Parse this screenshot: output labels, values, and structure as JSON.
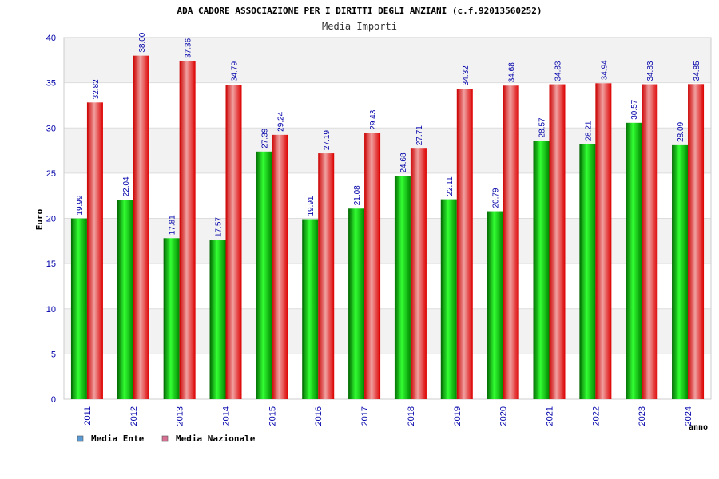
{
  "chart_data": {
    "type": "bar",
    "title": "ADA CADORE ASSOCIAZIONE PER I DIRITTI DEGLI ANZIANI (c.f.92013560252)",
    "subtitle": "Media Importi",
    "xlabel": "anno",
    "ylabel": "Euro",
    "ylim": [
      0,
      40
    ],
    "yticks": [
      0,
      5,
      10,
      15,
      20,
      25,
      30,
      35,
      40
    ],
    "grid": true,
    "legend_position": "bottom-left",
    "categories": [
      "2011",
      "2012",
      "2013",
      "2014",
      "2015",
      "2016",
      "2017",
      "2018",
      "2019",
      "2020",
      "2021",
      "2022",
      "2023",
      "2024"
    ],
    "series": [
      {
        "name": "Media Ente",
        "legend_color": "#5b9bd5",
        "bar_color": "#00a000",
        "values": [
          19.99,
          22.04,
          17.81,
          17.57,
          27.39,
          19.91,
          21.08,
          24.68,
          22.11,
          20.79,
          28.57,
          28.21,
          30.57,
          28.09
        ],
        "labels": [
          "19.99",
          "22.04",
          "17.81",
          "17.57",
          "27.39",
          "19.91",
          "21.08",
          "24.68",
          "22.11",
          "20.79",
          "28.57",
          "28.21",
          "30.57",
          "28.09"
        ]
      },
      {
        "name": "Media Nazionale",
        "legend_color": "#d87093",
        "bar_color": "#e00000",
        "values": [
          32.82,
          38.0,
          37.36,
          34.79,
          29.24,
          27.19,
          29.43,
          27.71,
          34.32,
          34.68,
          34.83,
          34.94,
          34.83,
          34.85
        ],
        "labels": [
          "32.82",
          "38.00",
          "37.36",
          "34.79",
          "29.24",
          "27.19",
          "29.43",
          "27.71",
          "34.32",
          "34.68",
          "34.83",
          "34.94",
          "34.83",
          "34.85"
        ]
      }
    ]
  }
}
